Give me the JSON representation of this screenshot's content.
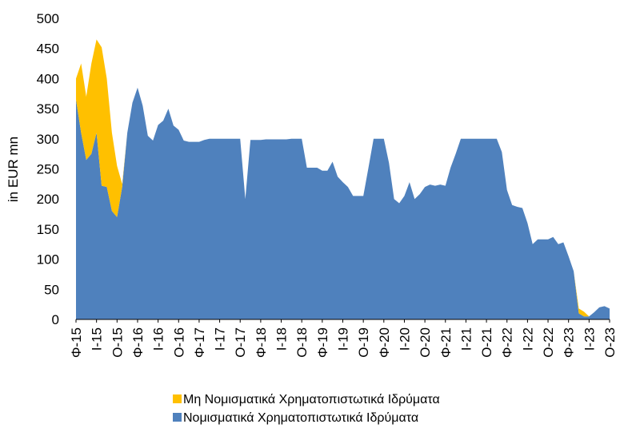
{
  "chart_data": {
    "type": "stacked_area",
    "y_axis_label": "in EUR mn",
    "categories": [
      "Φ-15",
      null,
      null,
      null,
      "Ι-15",
      null,
      null,
      null,
      "Ο-15",
      null,
      null,
      null,
      "Φ-16",
      null,
      null,
      null,
      "Ι-16",
      null,
      null,
      null,
      "Ο-16",
      null,
      null,
      null,
      "Φ-17",
      null,
      null,
      null,
      "Ι-17",
      null,
      null,
      null,
      "Ο-17",
      null,
      null,
      null,
      "Φ-18",
      null,
      null,
      null,
      "Ι-18",
      null,
      null,
      null,
      "Ο-18",
      null,
      null,
      null,
      "Φ-19",
      null,
      null,
      null,
      "Ι-19",
      null,
      null,
      null,
      "Ο-19",
      null,
      null,
      null,
      "Φ-20",
      null,
      null,
      null,
      "Ι-20",
      null,
      null,
      null,
      "Ο-20",
      null,
      null,
      null,
      "Φ-21",
      null,
      null,
      null,
      "Ι-21",
      null,
      null,
      null,
      "Ο-21",
      null,
      null,
      null,
      "Φ-22",
      null,
      null,
      null,
      "Ι-22",
      null,
      null,
      null,
      "Ο-22",
      null,
      null,
      null,
      "Φ-23",
      null,
      null,
      null,
      "Ι-23",
      null,
      null,
      null,
      "Ο-23"
    ],
    "series": [
      {
        "name": "Νομισματικά Χρηματοπιστωτικά Ιδρύματα",
        "color": "#4F81BD",
        "values": [
          365,
          310,
          265,
          275,
          310,
          222,
          220,
          180,
          170,
          220,
          310,
          360,
          385,
          355,
          305,
          297,
          323,
          330,
          350,
          322,
          315,
          297,
          295,
          295,
          295,
          298,
          300,
          300,
          300,
          300,
          300,
          300,
          300,
          200,
          298,
          298,
          298,
          299,
          299,
          299,
          299,
          299,
          300,
          300,
          300,
          252,
          252,
          252,
          247,
          247,
          262,
          237,
          228,
          220,
          205,
          205,
          205,
          252,
          300,
          300,
          300,
          260,
          200,
          193,
          205,
          228,
          200,
          208,
          220,
          224,
          222,
          224,
          222,
          252,
          275,
          300,
          300,
          300,
          300,
          300,
          300,
          300,
          300,
          278,
          215,
          190,
          187,
          185,
          160,
          125,
          133,
          133,
          133,
          137,
          125,
          128,
          105,
          80,
          10,
          5,
          5,
          12,
          20,
          22,
          18
        ]
      },
      {
        "name": "Μη Νομισματικά Χρηματοπιστωτικά Ιδρύματα",
        "color": "#FFC000",
        "values": [
          35,
          115,
          105,
          150,
          155,
          230,
          180,
          130,
          85,
          5,
          0,
          0,
          0,
          0,
          0,
          0,
          0,
          0,
          0,
          0,
          0,
          0,
          0,
          0,
          0,
          0,
          0,
          0,
          0,
          0,
          0,
          0,
          0,
          0,
          0,
          0,
          0,
          0,
          0,
          0,
          0,
          0,
          0,
          0,
          0,
          0,
          0,
          0,
          0,
          0,
          0,
          0,
          0,
          0,
          0,
          0,
          0,
          0,
          0,
          0,
          0,
          0,
          0,
          0,
          0,
          0,
          0,
          0,
          0,
          0,
          0,
          0,
          0,
          0,
          0,
          0,
          0,
          0,
          0,
          0,
          0,
          0,
          0,
          0,
          0,
          0,
          0,
          0,
          0,
          0,
          0,
          0,
          0,
          0,
          0,
          0,
          0,
          0,
          8,
          8,
          0,
          0,
          0,
          0,
          0
        ]
      }
    ],
    "ylim": [
      0,
      500
    ],
    "yticks": [
      0,
      50,
      100,
      150,
      200,
      250,
      300,
      350,
      400,
      450,
      500
    ]
  }
}
